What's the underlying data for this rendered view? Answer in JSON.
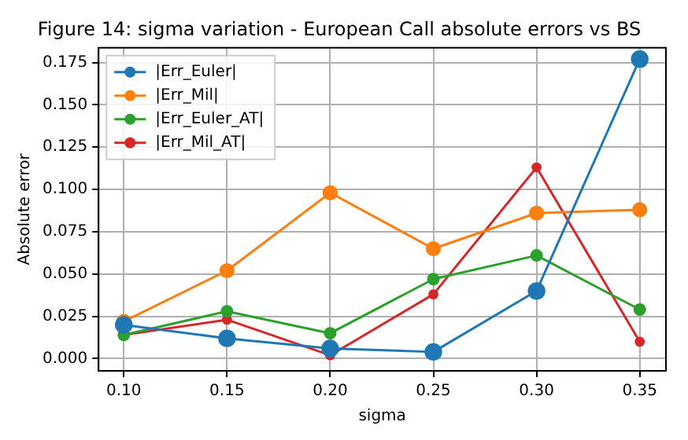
{
  "chart_data": {
    "type": "line",
    "title": "Figure 14: sigma variation - European Call absolute errors vs BS",
    "xlabel": "sigma",
    "ylabel": "Absolute error",
    "x": [
      0.1,
      0.15,
      0.2,
      0.25,
      0.3,
      0.35
    ],
    "series": [
      {
        "name": "|Err_Euler|",
        "color": "#1f77b4",
        "values": [
          0.02,
          0.012,
          0.006,
          0.004,
          0.04,
          0.177
        ]
      },
      {
        "name": "|Err_Mil|",
        "color": "#ff7f0e",
        "values": [
          0.022,
          0.052,
          0.098,
          0.065,
          0.086,
          0.088
        ]
      },
      {
        "name": "|Err_Euler_AT|",
        "color": "#2ca02c",
        "values": [
          0.014,
          0.028,
          0.015,
          0.047,
          0.061,
          0.029
        ]
      },
      {
        "name": "|Err_Mil_AT|",
        "color": "#d62728",
        "values": [
          0.014,
          0.023,
          0.002,
          0.038,
          0.113,
          0.01
        ]
      }
    ],
    "xlim": [
      0.0878,
      0.3627
    ],
    "ylim": [
      -0.0072,
      0.1837
    ],
    "xticks": [
      {
        "value": 0.1,
        "label": "0.10"
      },
      {
        "value": 0.15,
        "label": "0.15"
      },
      {
        "value": 0.2,
        "label": "0.20"
      },
      {
        "value": 0.25,
        "label": "0.25"
      },
      {
        "value": 0.3,
        "label": "0.30"
      },
      {
        "value": 0.35,
        "label": "0.35"
      }
    ],
    "yticks": [
      {
        "value": 0,
        "label": "0.000"
      },
      {
        "value": 0.025,
        "label": "0.025"
      },
      {
        "value": 0.05,
        "label": "0.050"
      },
      {
        "value": 0.075,
        "label": "0.075"
      },
      {
        "value": 0.1,
        "label": "0.100"
      },
      {
        "value": 0.125,
        "label": "0.125"
      },
      {
        "value": 0.15,
        "label": "0.150"
      },
      {
        "value": 0.175,
        "label": "0.175"
      }
    ],
    "grid": true,
    "legend": "top left",
    "marker": "circle",
    "line_style": "solid"
  }
}
